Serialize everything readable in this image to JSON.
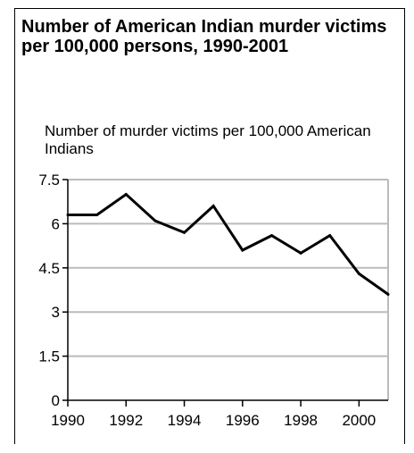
{
  "chart_data": {
    "type": "line",
    "title": "Number of American Indian murder victims per 100,000 persons, 1990-2001",
    "ylabel": "Number of murder victims per 100,000 American Indians",
    "xlabel": "",
    "xlim": [
      1990,
      2001
    ],
    "ylim": [
      0,
      7.5
    ],
    "x_ticks": [
      1990,
      1992,
      1994,
      1996,
      1998,
      2000
    ],
    "y_ticks": [
      0,
      1.5,
      3,
      4.5,
      6,
      7.5
    ],
    "y_tick_labels": [
      "0",
      "1.5",
      "3",
      "4.5",
      "6",
      "7.5"
    ],
    "grid": true,
    "series": [
      {
        "x": [
          1990,
          1991,
          1992,
          1993,
          1994,
          1995,
          1996,
          1997,
          1998,
          1999,
          2000,
          2001
        ],
        "y": [
          6.3,
          6.3,
          7.0,
          6.1,
          5.7,
          6.6,
          5.1,
          5.6,
          5.0,
          5.6,
          4.3,
          3.6
        ]
      }
    ],
    "colors": {
      "line": "#000000",
      "grid": "#bbbbbb",
      "axis": "#000000"
    }
  }
}
